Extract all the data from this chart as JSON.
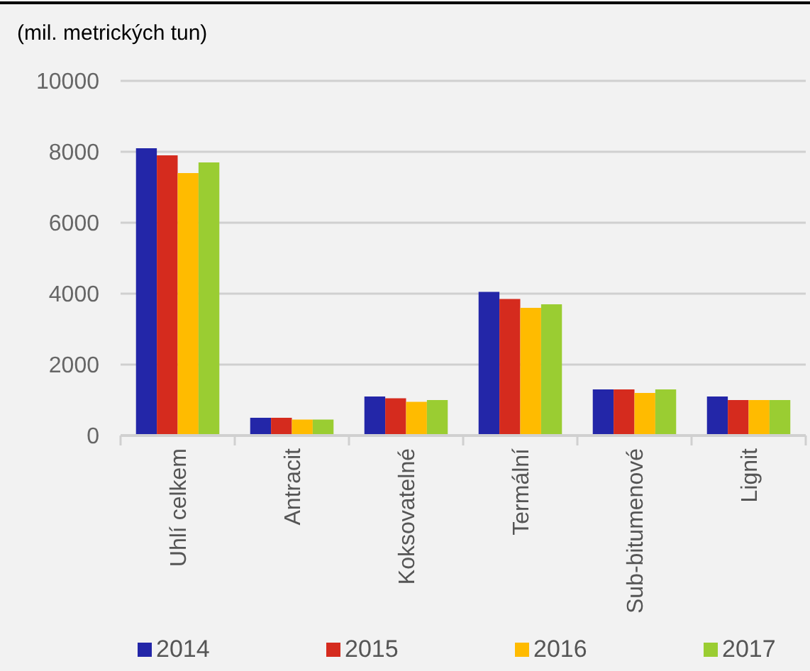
{
  "chart_data": {
    "type": "bar",
    "ylabel": "(mil. metrických tun)",
    "categories": [
      "Uhlí celkem",
      "Antracit",
      "Koksovatelné",
      "Termální",
      "Sub-bitumenové",
      "Lignit"
    ],
    "series": [
      {
        "name": "2014",
        "color": "#2326a8",
        "values": [
          8100,
          500,
          1100,
          4050,
          1300,
          1100
        ]
      },
      {
        "name": "2015",
        "color": "#d52b1e",
        "values": [
          7900,
          500,
          1050,
          3850,
          1300,
          1000
        ]
      },
      {
        "name": "2016",
        "color": "#ffbb00",
        "values": [
          7400,
          450,
          950,
          3600,
          1200,
          1000
        ]
      },
      {
        "name": "2017",
        "color": "#9acd32",
        "values": [
          7700,
          450,
          1000,
          3700,
          1300,
          1000
        ]
      }
    ],
    "ylim": [
      0,
      10000
    ],
    "yticks": [
      0,
      2000,
      4000,
      6000,
      8000,
      10000
    ],
    "grid": "y",
    "legend": "bottom"
  }
}
